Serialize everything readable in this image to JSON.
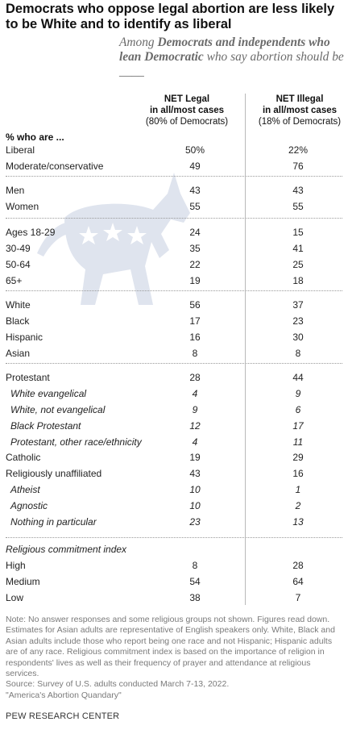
{
  "title": "Democrats who oppose legal abortion are less likely to be White and to identify as liberal",
  "subtitle": {
    "prefix": "Among ",
    "bold": "Democrats and independents who lean Democratic",
    "suffix": " who say abortion should be ____"
  },
  "colors": {
    "watermark": "#dfe4ee",
    "divider": "#b9b9b9",
    "note": "#7a7a7a"
  },
  "watermark_icon": "democratic-donkey-icon",
  "chart_data": {
    "type": "table",
    "columns": [
      {
        "line1": "NET Legal",
        "line2": "in all/most cases",
        "line3": "(80% of Democrats)"
      },
      {
        "line1": "NET Illegal",
        "line2": "in all/most cases",
        "line3": "(18% of Democrats)"
      }
    ],
    "header_label": "% who are ...",
    "rows": [
      {
        "label": "Liberal",
        "legal": "50%",
        "illegal": "22%"
      },
      {
        "label": "Moderate/conservative",
        "legal": "49",
        "illegal": "76"
      },
      {
        "label": "Men",
        "legal": "43",
        "illegal": "43"
      },
      {
        "label": "Women",
        "legal": "55",
        "illegal": "55"
      },
      {
        "label": "Ages 18-29",
        "legal": "24",
        "illegal": "15"
      },
      {
        "label": "30-49",
        "legal": "35",
        "illegal": "41"
      },
      {
        "label": "50-64",
        "legal": "22",
        "illegal": "25"
      },
      {
        "label": "65+",
        "legal": "19",
        "illegal": "18"
      },
      {
        "label": "White",
        "legal": "56",
        "illegal": "37"
      },
      {
        "label": "Black",
        "legal": "17",
        "illegal": "23"
      },
      {
        "label": "Hispanic",
        "legal": "16",
        "illegal": "30"
      },
      {
        "label": "Asian",
        "legal": "8",
        "illegal": "8"
      },
      {
        "label": "Protestant",
        "legal": "28",
        "illegal": "44"
      },
      {
        "label": "White evangelical",
        "legal": "4",
        "illegal": "9",
        "sub": true
      },
      {
        "label": "White, not evangelical",
        "legal": "9",
        "illegal": "6",
        "sub": true
      },
      {
        "label": "Black Protestant",
        "legal": "12",
        "illegal": "17",
        "sub": true
      },
      {
        "label": "Protestant, other race/ethnicity",
        "legal": "4",
        "illegal": "11",
        "sub": true
      },
      {
        "label": "Catholic",
        "legal": "19",
        "illegal": "29"
      },
      {
        "label": "Religiously unaffiliated",
        "legal": "43",
        "illegal": "16"
      },
      {
        "label": "Atheist",
        "legal": "10",
        "illegal": "1",
        "sub": true
      },
      {
        "label": "Agnostic",
        "legal": "10",
        "illegal": "2",
        "sub": true
      },
      {
        "label": "Nothing in particular",
        "legal": "23",
        "illegal": "13",
        "sub": true
      },
      {
        "label": "Religious commitment index",
        "legal": "",
        "illegal": "",
        "italic": true
      },
      {
        "label": "High",
        "legal": "8",
        "illegal": "28"
      },
      {
        "label": "Medium",
        "legal": "54",
        "illegal": "64"
      },
      {
        "label": "Low",
        "legal": "38",
        "illegal": "7"
      }
    ]
  },
  "notes": {
    "note": "Note: No answer responses and some religious groups not shown. Figures read down. Estimates for Asian adults are representative of English speakers only. White, Black and Asian adults include those who report being one race and not Hispanic; Hispanic adults are of any race. Religious commitment index is based on the importance of religion in respondents' lives as well as their frequency of prayer and attendance at religious services.",
    "source": "Source: Survey of U.S. adults conducted March 7-13, 2022.",
    "report": "\"America's Abortion Quandary\""
  },
  "brand": "PEW RESEARCH CENTER"
}
